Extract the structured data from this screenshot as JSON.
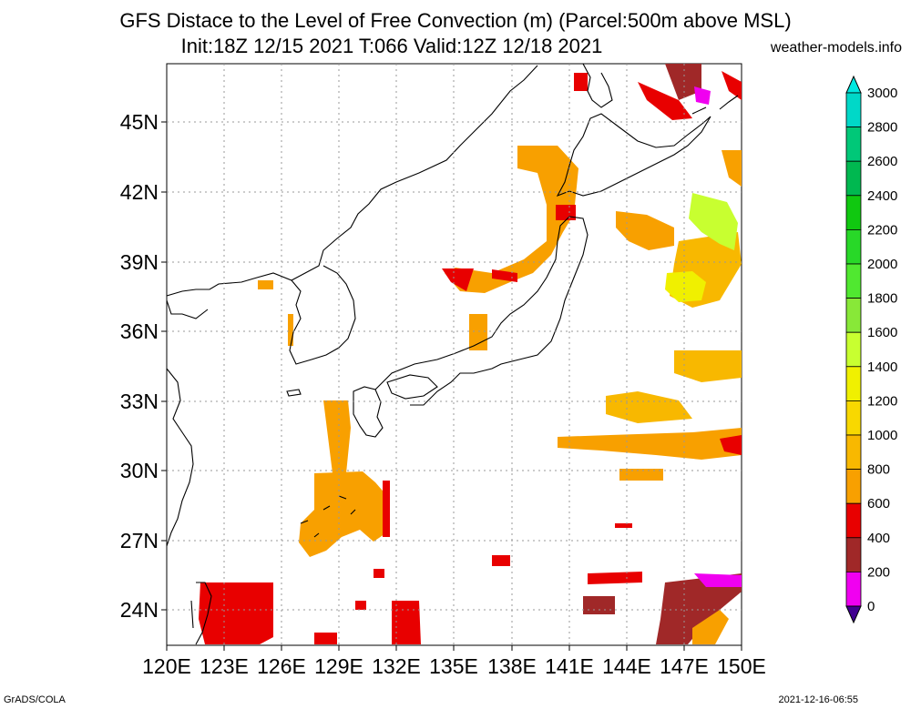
{
  "header": {
    "title": "GFS Distace to the Level of Free Convection (m) (Parcel:500m above MSL)",
    "subtitle": "Init:18Z 12/15 2021 T:066 Valid:12Z 12/18 2021",
    "site": "weather-models.info"
  },
  "footer": {
    "left": "GrADS/COLA",
    "right": "2021-12-16-06:55"
  },
  "map": {
    "lat_labels": [
      "45N",
      "42N",
      "39N",
      "36N",
      "33N",
      "30N",
      "27N",
      "24N"
    ],
    "lon_labels": [
      "120E",
      "123E",
      "126E",
      "129E",
      "132E",
      "135E",
      "138E",
      "141E",
      "144E",
      "147E",
      "150E"
    ]
  },
  "colorbar": {
    "labels": [
      "3000",
      "2800",
      "2600",
      "2400",
      "2200",
      "2000",
      "1800",
      "1600",
      "1400",
      "1200",
      "1000",
      "800",
      "600",
      "400",
      "200",
      "0"
    ],
    "colors": [
      "#00d8c8",
      "#00c878",
      "#00b850",
      "#10c810",
      "#28d828",
      "#50e830",
      "#88e838",
      "#c8ff30",
      "#f0f000",
      "#f8d800",
      "#f8b800",
      "#f8a000",
      "#e80000",
      "#a02828",
      "#f000f0",
      "#400090"
    ],
    "top_color": "#00e8e0",
    "bottom_color": "#400090"
  }
}
